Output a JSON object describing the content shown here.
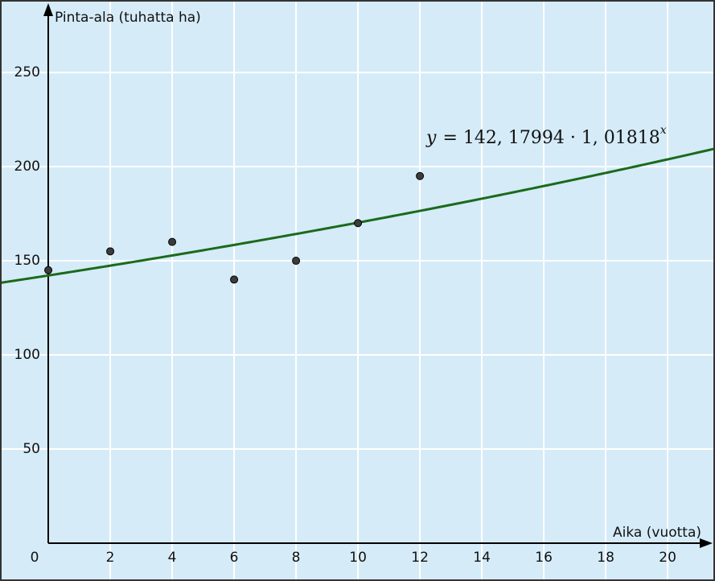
{
  "chart_data": {
    "type": "scatter",
    "x_label": "Aika (vuotta)",
    "y_label": "Pinta-ala (tuhatta ha)",
    "x": [
      0,
      2,
      4,
      6,
      8,
      10,
      12
    ],
    "values": [
      145,
      155,
      160,
      140,
      150,
      170,
      195
    ],
    "color": "#3c3c3c",
    "curve": {
      "a": 142.17994,
      "b": 1.01818,
      "color": "#1b6a1b"
    },
    "equation": {
      "lhs": "y",
      "rhs": "= 142, 17994 · 1, 01818",
      "exponent": "x"
    },
    "xlim": [
      -1.56,
      21.53
    ],
    "ylim": [
      -20.1,
      288.5
    ],
    "xticks": [
      0,
      2,
      4,
      6,
      8,
      10,
      12,
      14,
      16,
      18,
      20
    ],
    "yticks": [
      50,
      100,
      150,
      200,
      250
    ],
    "grid": true
  }
}
